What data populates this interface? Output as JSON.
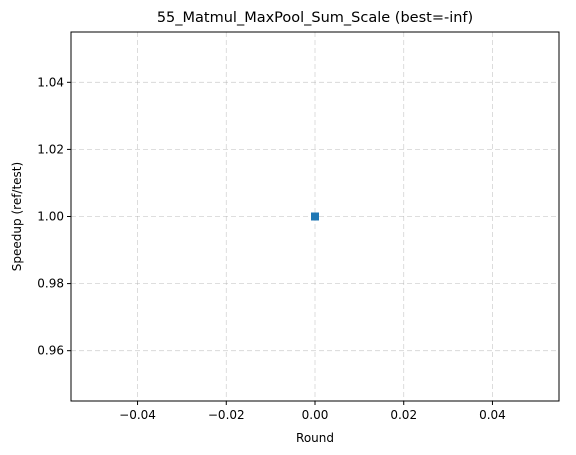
{
  "chart_data": {
    "type": "line",
    "title": "55_Matmul_MaxPool_Sum_Scale (best=-inf)",
    "xlabel": "Round",
    "ylabel": "Speedup (ref/test)",
    "xlim": [
      -0.055,
      0.055
    ],
    "ylim": [
      0.945,
      1.055
    ],
    "xticks": [
      -0.04,
      -0.02,
      0.0,
      0.02,
      0.04
    ],
    "xtick_labels": [
      "−0.04",
      "−0.02",
      "0.00",
      "0.02",
      "0.04"
    ],
    "yticks": [
      0.96,
      0.98,
      1.0,
      1.02,
      1.04
    ],
    "ytick_labels": [
      "0.96",
      "0.98",
      "1.00",
      "1.02",
      "1.04"
    ],
    "grid": true,
    "series": [
      {
        "x": [
          0
        ],
        "y": [
          1.0
        ],
        "color": "#1f77b4",
        "marker": "square"
      }
    ]
  }
}
